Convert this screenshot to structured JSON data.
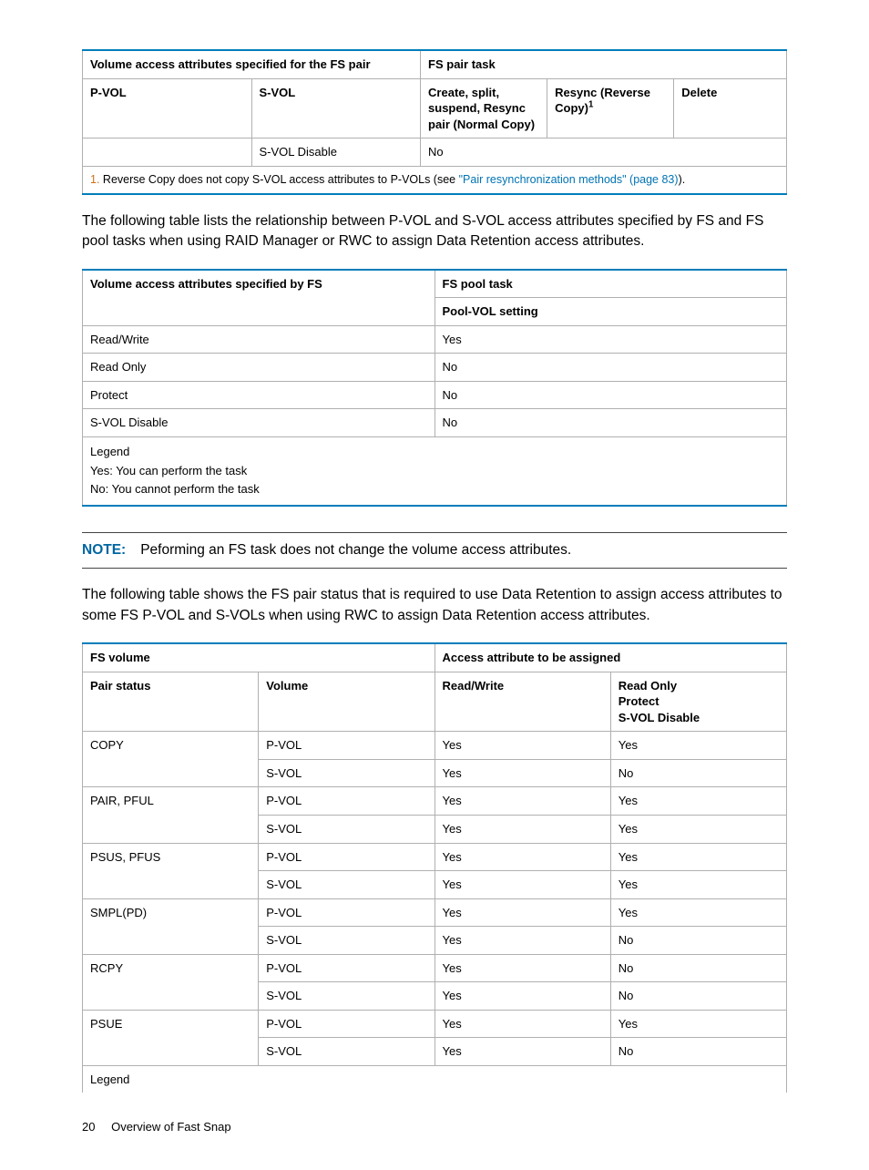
{
  "colors": {
    "rule": "#007dba",
    "border": "#b0b0b0",
    "note_label": "#0066a1",
    "footnote_num": "#d06f1a",
    "link": "#0073b3"
  },
  "table1": {
    "head_a": "Volume access attributes specified for the FS pair",
    "head_b": "FS pair task",
    "sub_pvol": "P-VOL",
    "sub_svol": "S-VOL",
    "sub_create": "Create, split, suspend, Resync pair (Normal Copy)",
    "sub_resync": "Resync (Reverse Copy)",
    "sub_resync_sup": "1",
    "sub_delete": "Delete",
    "row_svol": "S-VOL Disable",
    "row_no": "No",
    "fn_num": "1.",
    "fn_a": " Reverse Copy does not copy S-VOL access attributes to P-VOLs (see ",
    "fn_link": "\"Pair resynchronization methods\" (page 83)",
    "fn_b": ")."
  },
  "para1": "The following table lists the relationship between P-VOL and S-VOL access attributes specified by FS and FS pool tasks when using RAID Manager or RWC to assign Data Retention access attributes.",
  "table2": {
    "head_a": "Volume access attributes specified by FS",
    "head_b": "FS pool task",
    "sub_pool": "Pool-VOL setting",
    "rows": [
      [
        "Read/Write",
        "Yes"
      ],
      [
        "Read Only",
        "No"
      ],
      [
        "Protect",
        "No"
      ],
      [
        "S-VOL Disable",
        "No"
      ]
    ],
    "legend1": "Legend",
    "legend2": "Yes: You can perform the task",
    "legend3": "No: You cannot perform the task"
  },
  "note": {
    "label": "NOTE:",
    "text": "Peforming an FS task does not change the volume access attributes."
  },
  "para2": "The following table shows the FS pair status that is required to use Data Retention to assign access attributes to some FS P-VOL and S-VOLs when using RWC to assign Data Retention access attributes.",
  "table3": {
    "head_a": "FS volume",
    "head_b": "Access attribute to be assigned",
    "sub_pair": "Pair status",
    "sub_vol": "Volume",
    "sub_rw": "Read/Write",
    "sub_ro1": "Read Only",
    "sub_ro2": "Protect",
    "sub_ro3": "S-VOL Disable",
    "rows": [
      [
        "COPY",
        "P-VOL",
        "Yes",
        "Yes"
      ],
      [
        "",
        "S-VOL",
        "Yes",
        "No"
      ],
      [
        "PAIR, PFUL",
        "P-VOL",
        "Yes",
        "Yes"
      ],
      [
        "",
        "S-VOL",
        "Yes",
        "Yes"
      ],
      [
        "PSUS, PFUS",
        "P-VOL",
        "Yes",
        "Yes"
      ],
      [
        "",
        "S-VOL",
        "Yes",
        "Yes"
      ],
      [
        "SMPL(PD)",
        "P-VOL",
        "Yes",
        "Yes"
      ],
      [
        "",
        "S-VOL",
        "Yes",
        "No"
      ],
      [
        "RCPY",
        "P-VOL",
        "Yes",
        "No"
      ],
      [
        "",
        "S-VOL",
        "Yes",
        "No"
      ],
      [
        "PSUE",
        "P-VOL",
        "Yes",
        "Yes"
      ],
      [
        "",
        "S-VOL",
        "Yes",
        "No"
      ]
    ],
    "legend": "Legend"
  },
  "footer": {
    "pagenum": "20",
    "title": "Overview of Fast Snap"
  }
}
